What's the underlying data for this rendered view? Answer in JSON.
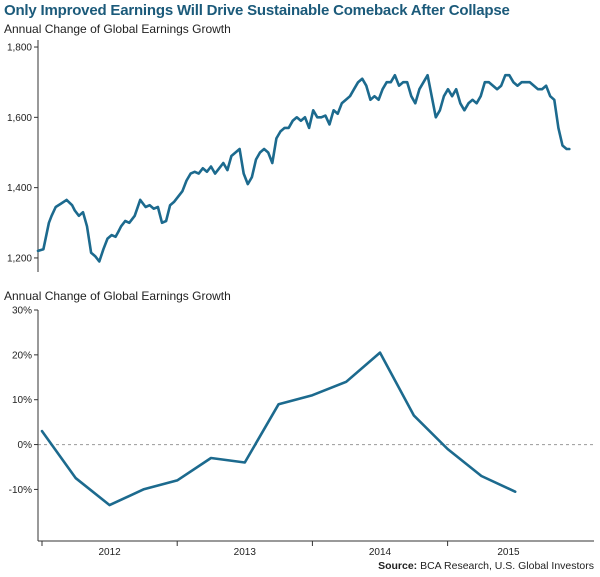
{
  "page": {
    "title": "Only Improved Earnings Will Drive Sustainable Comeback After Collapse",
    "source_label": "Source:",
    "source_text": "BCA Research, U.S. Global Investors"
  },
  "colors": {
    "line": "#1c6a8e",
    "title": "#1b5a7a",
    "axis": "#333333",
    "zero_line": "#999999"
  },
  "chart_data": [
    {
      "type": "line",
      "title": "Annual Change of Global Earnings Growth",
      "xlabel": "",
      "ylabel": "",
      "yticks": [
        {
          "value": 1200,
          "label": "1,200"
        },
        {
          "value": 1400,
          "label": "1,400"
        },
        {
          "value": 1600,
          "label": "1,600"
        },
        {
          "value": 1800,
          "label": "1,800"
        }
      ],
      "ylim": [
        1160,
        1820
      ],
      "xlim": [
        2011.5,
        2015.42
      ],
      "grid": false,
      "series": [
        {
          "x": [
            2011.5,
            2011.54,
            2011.58,
            2011.6,
            2011.63,
            2011.67,
            2011.71,
            2011.75,
            2011.77,
            2011.8,
            2011.83,
            2011.86,
            2011.89,
            2011.92,
            2011.95,
            2011.98,
            2012.01,
            2012.04,
            2012.07,
            2012.09,
            2012.11,
            2012.14,
            2012.17,
            2012.21,
            2012.25,
            2012.29,
            2012.32,
            2012.35,
            2012.38,
            2012.41,
            2012.44,
            2012.47,
            2012.5,
            2012.53,
            2012.56,
            2012.59,
            2012.62,
            2012.65,
            2012.68,
            2012.71,
            2012.74,
            2012.77,
            2012.8,
            2012.83,
            2012.86,
            2012.89,
            2012.92,
            2012.95,
            2012.98,
            2013.01,
            2013.04,
            2013.07,
            2013.1,
            2013.13,
            2013.16,
            2013.19,
            2013.22,
            2013.25,
            2013.28,
            2013.31,
            2013.34,
            2013.37,
            2013.4,
            2013.43,
            2013.46,
            2013.49,
            2013.52,
            2013.55,
            2013.58,
            2013.61,
            2013.64,
            2013.67,
            2013.7,
            2013.73,
            2013.76,
            2013.79,
            2013.82,
            2013.85,
            2013.88,
            2013.91,
            2013.94,
            2013.97,
            2014.0,
            2014.03,
            2014.06,
            2014.09,
            2014.12,
            2014.15,
            2014.18,
            2014.21,
            2014.24,
            2014.27,
            2014.3,
            2014.33,
            2014.36,
            2014.39,
            2014.42,
            2014.45,
            2014.48,
            2014.51,
            2014.54,
            2014.57,
            2014.6,
            2014.63,
            2014.66,
            2014.69,
            2014.72,
            2014.75,
            2014.78,
            2014.81,
            2014.84,
            2014.87,
            2014.9,
            2014.93,
            2014.96,
            2014.99,
            2015.02,
            2015.05,
            2015.08,
            2015.11,
            2015.14,
            2015.17,
            2015.2,
            2015.23,
            2015.26,
            2015.29,
            2015.32,
            2015.35,
            2015.38,
            2015.4
          ],
          "y": [
            1220,
            1225,
            1300,
            1320,
            1345,
            1355,
            1365,
            1350,
            1335,
            1320,
            1330,
            1290,
            1215,
            1205,
            1190,
            1225,
            1255,
            1265,
            1260,
            1275,
            1290,
            1305,
            1300,
            1320,
            1365,
            1345,
            1350,
            1340,
            1345,
            1300,
            1305,
            1350,
            1360,
            1375,
            1390,
            1420,
            1440,
            1445,
            1440,
            1455,
            1445,
            1460,
            1440,
            1455,
            1470,
            1450,
            1490,
            1500,
            1510,
            1440,
            1410,
            1430,
            1480,
            1500,
            1510,
            1500,
            1470,
            1540,
            1560,
            1570,
            1570,
            1590,
            1600,
            1590,
            1600,
            1570,
            1620,
            1600,
            1600,
            1605,
            1580,
            1620,
            1610,
            1640,
            1650,
            1660,
            1680,
            1700,
            1710,
            1690,
            1650,
            1660,
            1650,
            1680,
            1700,
            1700,
            1720,
            1690,
            1700,
            1700,
            1660,
            1640,
            1680,
            1700,
            1720,
            1660,
            1600,
            1620,
            1660,
            1680,
            1660,
            1680,
            1640,
            1620,
            1640,
            1650,
            1640,
            1660,
            1700,
            1700,
            1690,
            1680,
            1690,
            1720,
            1720,
            1700,
            1690,
            1700,
            1700,
            1700,
            1690,
            1680,
            1680,
            1690,
            1660,
            1650,
            1570,
            1520,
            1510,
            1510
          ]
        }
      ]
    },
    {
      "type": "line",
      "title": "Annual Change of Global Earnings Growth",
      "xlabel": "",
      "ylabel": "",
      "categories": [
        "2012",
        "2013",
        "2014",
        "2015"
      ],
      "yticks": [
        {
          "value": 30,
          "label": "30%"
        },
        {
          "value": 20,
          "label": "20%"
        },
        {
          "value": 10,
          "label": "10%"
        },
        {
          "value": 0,
          "label": "0%"
        },
        {
          "value": -10,
          "label": "-10%"
        }
      ],
      "ylim": [
        -21.5,
        30
      ],
      "xlim": [
        2011.5,
        2015.42
      ],
      "grid": false,
      "series": [
        {
          "x": [
            2011.5,
            2011.75,
            2012.0,
            2012.25,
            2012.5,
            2012.75,
            2013.0,
            2013.25,
            2013.5,
            2013.75,
            2014.0,
            2014.25,
            2014.5,
            2014.75,
            2015.0
          ],
          "y": [
            3,
            -7.5,
            -13.5,
            -10,
            -8,
            -3,
            -4,
            9,
            11,
            14,
            20.5,
            6.5,
            -1,
            -7,
            -10.5
          ]
        }
      ]
    }
  ]
}
